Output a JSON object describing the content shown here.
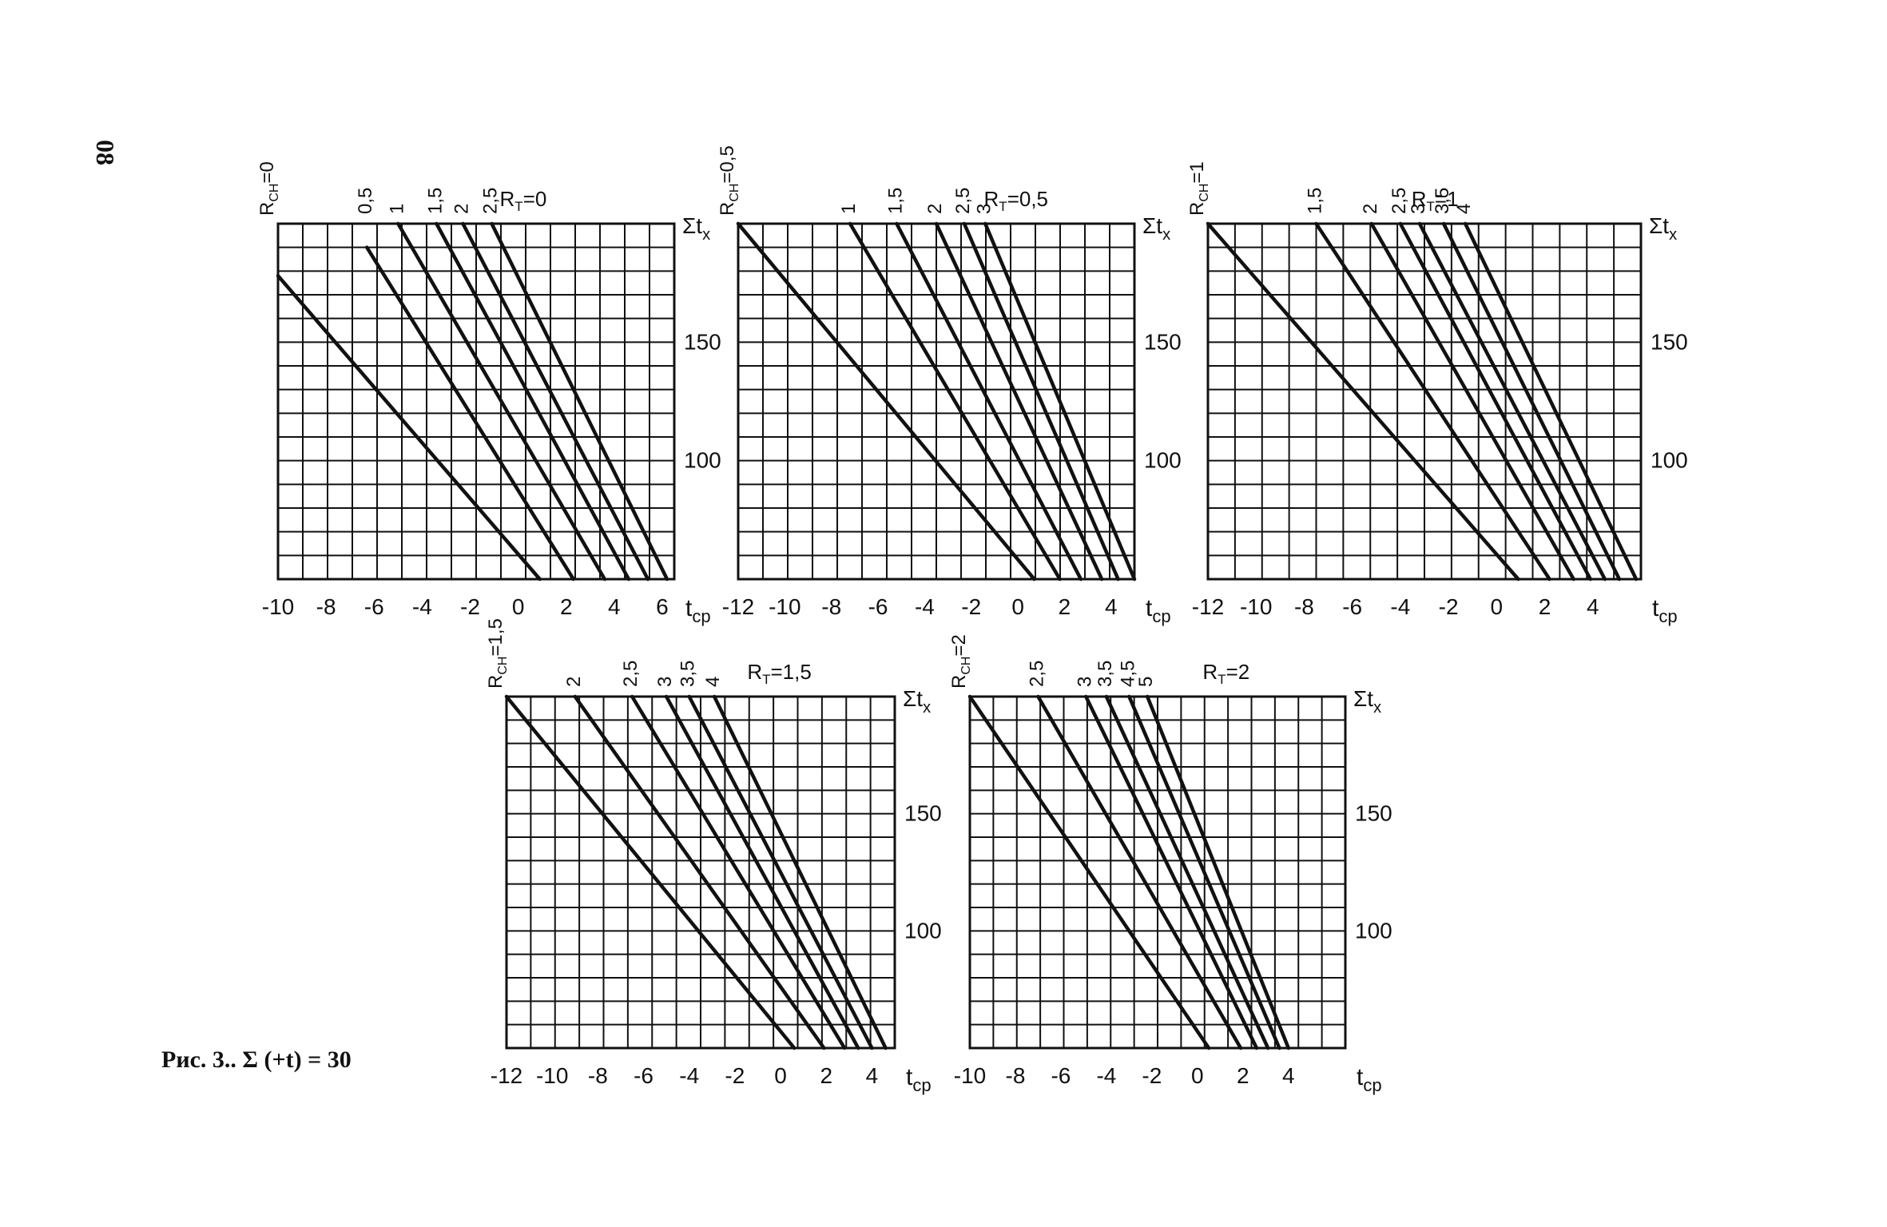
{
  "page_number": "08",
  "caption": "Рис. 3.. Σ (+t) = 30",
  "colors": {
    "ink": "#111111",
    "paper": "#ffffff"
  },
  "chart_data": [
    {
      "type": "line",
      "panel": "R_T=0",
      "rt_label": "R",
      "rt_sub": "T",
      "rt_value": "=0",
      "xlabel": "t",
      "xlabel_sub": "ср",
      "ylabel": "Σt",
      "ylabel_sub": "x",
      "xlim": [
        -10,
        6.5
      ],
      "ylim": [
        50,
        200
      ],
      "xticks": [
        "-10",
        "-8",
        "-6",
        "-4",
        "-2",
        "0",
        "2",
        "4",
        "6"
      ],
      "xtick_values": [
        -10,
        -8,
        -6,
        -4,
        -2,
        0,
        2,
        4,
        6
      ],
      "yticks": [
        "150",
        "100"
      ],
      "ytick_values": [
        150,
        100
      ],
      "grid": true,
      "series": [
        {
          "name": "R_CH=0",
          "label": "R_CH=0",
          "x": [
            -10,
            0.9
          ],
          "y": [
            178,
            50
          ]
        },
        {
          "name": "0,5",
          "label": "0,5",
          "x": [
            -6.3,
            2.3
          ],
          "y": [
            190,
            50
          ]
        },
        {
          "name": "1",
          "label": "1",
          "x": [
            -5,
            3.6
          ],
          "y": [
            200,
            50
          ]
        },
        {
          "name": "1,5",
          "label": "1,5",
          "x": [
            -3.4,
            4.6
          ],
          "y": [
            200,
            50
          ]
        },
        {
          "name": "2",
          "label": "2",
          "x": [
            -2.3,
            5.4
          ],
          "y": [
            200,
            50
          ]
        },
        {
          "name": "2,5",
          "label": "2,5",
          "x": [
            -1.1,
            6.2
          ],
          "y": [
            200,
            50
          ]
        }
      ]
    },
    {
      "type": "line",
      "panel": "R_T=0,5",
      "rt_label": "R",
      "rt_sub": "T",
      "rt_value": "=0,5",
      "xlabel": "t",
      "xlabel_sub": "ср",
      "ylabel": "Σt",
      "ylabel_sub": "x",
      "xlim": [
        -12,
        5
      ],
      "ylim": [
        50,
        200
      ],
      "xticks": [
        "-12",
        "-10",
        "-8",
        "-6",
        "-4",
        "-2",
        "0",
        "2",
        "4"
      ],
      "xtick_values": [
        -12,
        -10,
        -8,
        -6,
        -4,
        -2,
        0,
        2,
        4
      ],
      "yticks": [
        "150",
        "100"
      ],
      "ytick_values": [
        150,
        100
      ],
      "grid": true,
      "series": [
        {
          "name": "R_CH=0,5",
          "label": "R_CH=0,5",
          "x": [
            -12,
            0.7
          ],
          "y": [
            200,
            50
          ]
        },
        {
          "name": "1",
          "label": "1",
          "x": [
            -7.2,
            1.8
          ],
          "y": [
            200,
            50
          ]
        },
        {
          "name": "1,5",
          "label": "1,5",
          "x": [
            -5.2,
            2.7
          ],
          "y": [
            200,
            50
          ]
        },
        {
          "name": "2",
          "label": "2",
          "x": [
            -3.5,
            3.6
          ],
          "y": [
            200,
            50
          ]
        },
        {
          "name": "2,5",
          "label": "2,5",
          "x": [
            -2.3,
            4.3
          ],
          "y": [
            200,
            50
          ]
        },
        {
          "name": "3",
          "label": "3",
          "x": [
            -1.4,
            5
          ],
          "y": [
            200,
            50
          ]
        }
      ]
    },
    {
      "type": "line",
      "panel": "R_T=1",
      "rt_label": "R",
      "rt_sub": "T",
      "rt_value": "=1",
      "xlabel": "t",
      "xlabel_sub": "ср",
      "ylabel": "Σt",
      "ylabel_sub": "x",
      "xlim": [
        -12,
        6
      ],
      "ylim": [
        50,
        200
      ],
      "xticks": [
        "-12",
        "-10",
        "-8",
        "-6",
        "-4",
        "-2",
        "0",
        "2",
        "4"
      ],
      "xtick_values": [
        -12,
        -10,
        -8,
        -6,
        -4,
        -2,
        0,
        2,
        4
      ],
      "yticks": [
        "150",
        "100"
      ],
      "ytick_values": [
        150,
        100
      ],
      "grid": true,
      "series": [
        {
          "name": "R_CH=1",
          "label": "R_CH=1",
          "x": [
            -12,
            0.9
          ],
          "y": [
            200,
            50
          ]
        },
        {
          "name": "1,5",
          "label": "1,5",
          "x": [
            -7.5,
            2.2
          ],
          "y": [
            200,
            50
          ]
        },
        {
          "name": "2",
          "label": "2",
          "x": [
            -5.2,
            3.2
          ],
          "y": [
            200,
            50
          ]
        },
        {
          "name": "2,5",
          "label": "2,5",
          "x": [
            -4,
            3.9
          ],
          "y": [
            200,
            50
          ]
        },
        {
          "name": "3",
          "label": "3",
          "x": [
            -3.2,
            4.5
          ],
          "y": [
            200,
            50
          ]
        },
        {
          "name": "3,5",
          "label": "3,5",
          "x": [
            -2.2,
            5.1
          ],
          "y": [
            200,
            50
          ]
        },
        {
          "name": "4",
          "label": "4",
          "x": [
            -1.3,
            5.8
          ],
          "y": [
            200,
            50
          ]
        }
      ]
    },
    {
      "type": "line",
      "panel": "R_T=1,5",
      "rt_label": "R",
      "rt_sub": "T",
      "rt_value": "=1,5",
      "xlabel": "t",
      "xlabel_sub": "ср",
      "ylabel": "Σt",
      "ylabel_sub": "x",
      "xlim": [
        -12,
        5
      ],
      "ylim": [
        50,
        200
      ],
      "xticks": [
        "-12",
        "-10",
        "-8",
        "-6",
        "-4",
        "-2",
        "0",
        "2",
        "4"
      ],
      "xtick_values": [
        -12,
        -10,
        -8,
        -6,
        -4,
        -2,
        0,
        2,
        4
      ],
      "yticks": [
        "150",
        "100"
      ],
      "ytick_values": [
        150,
        100
      ],
      "grid": true,
      "series": [
        {
          "name": "R_CH=1,5",
          "label": "R_CH=1,5",
          "x": [
            -12,
            0.6
          ],
          "y": [
            200,
            50
          ]
        },
        {
          "name": "2",
          "label": "2",
          "x": [
            -9,
            1.9
          ],
          "y": [
            200,
            50
          ]
        },
        {
          "name": "2,5",
          "label": "2,5",
          "x": [
            -6.5,
            2.8
          ],
          "y": [
            200,
            50
          ]
        },
        {
          "name": "3",
          "label": "3",
          "x": [
            -5,
            3.4
          ],
          "y": [
            200,
            50
          ]
        },
        {
          "name": "3,5",
          "label": "3,5",
          "x": [
            -4,
            4
          ],
          "y": [
            200,
            50
          ]
        },
        {
          "name": "4",
          "label": "4",
          "x": [
            -2.9,
            4.6
          ],
          "y": [
            200,
            50
          ]
        }
      ]
    },
    {
      "type": "line",
      "panel": "R_T=2",
      "rt_label": "R",
      "rt_sub": "T",
      "rt_value": "=2",
      "xlabel": "t",
      "xlabel_sub": "ср",
      "ylabel": "Σt",
      "ylabel_sub": "x",
      "xlim": [
        -10,
        6.5
      ],
      "ylim": [
        50,
        200
      ],
      "xticks": [
        "-10",
        "-8",
        "-6",
        "-4",
        "-2",
        "0",
        "2",
        "4"
      ],
      "xtick_values": [
        -10,
        -8,
        -6,
        -4,
        -2,
        0,
        2,
        4
      ],
      "yticks": [
        "150",
        "100"
      ],
      "ytick_values": [
        150,
        100
      ],
      "grid": true,
      "series": [
        {
          "name": "R_CH=2",
          "label": "R_CH=2",
          "x": [
            -10,
            0.5
          ],
          "y": [
            200,
            50
          ]
        },
        {
          "name": "2,5",
          "label": "2,5",
          "x": [
            -7,
            1.9
          ],
          "y": [
            200,
            50
          ]
        },
        {
          "name": "3",
          "label": "3",
          "x": [
            -4.9,
            2.6
          ],
          "y": [
            200,
            50
          ]
        },
        {
          "name": "3,5",
          "label": "3,5",
          "x": [
            -4,
            3.1
          ],
          "y": [
            200,
            50
          ]
        },
        {
          "name": "4,5",
          "label": "4,5",
          "x": [
            -3,
            3.6
          ],
          "y": [
            200,
            50
          ]
        },
        {
          "name": "5",
          "label": "5",
          "x": [
            -2.2,
            4
          ],
          "y": [
            200,
            50
          ]
        }
      ]
    }
  ]
}
